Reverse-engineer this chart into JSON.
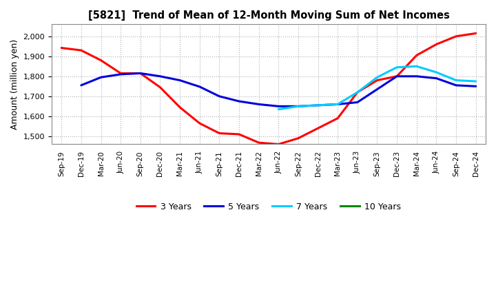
{
  "title": "[5821]  Trend of Mean of 12-Month Moving Sum of Net Incomes",
  "ylabel": "Amount (million yen)",
  "background_color": "#ffffff",
  "grid_color": "#b0b0b0",
  "ylim": [
    1460,
    2060
  ],
  "yticks": [
    1500,
    1600,
    1700,
    1800,
    1900,
    2000
  ],
  "x_labels": [
    "Sep-19",
    "Dec-19",
    "Mar-20",
    "Jun-20",
    "Sep-20",
    "Dec-20",
    "Mar-21",
    "Jun-21",
    "Sep-21",
    "Dec-21",
    "Mar-22",
    "Jun-22",
    "Sep-22",
    "Dec-22",
    "Mar-23",
    "Jun-23",
    "Sep-23",
    "Dec-23",
    "Mar-24",
    "Jun-24",
    "Sep-24",
    "Dec-24"
  ],
  "series": {
    "3 Years": {
      "color": "#ff0000",
      "x": [
        0,
        1,
        2,
        3,
        4,
        5,
        6,
        7,
        8,
        9,
        10,
        11,
        12,
        13,
        14,
        15,
        16,
        17,
        18,
        19,
        20,
        21
      ],
      "y": [
        1942,
        1930,
        1880,
        1815,
        1815,
        1745,
        1645,
        1565,
        1515,
        1510,
        1468,
        1460,
        1490,
        1540,
        1590,
        1720,
        1780,
        1800,
        1905,
        1960,
        2000,
        2015
      ]
    },
    "5 Years": {
      "color": "#0000dd",
      "x": [
        1,
        2,
        3,
        4,
        5,
        6,
        7,
        8,
        9,
        10,
        11,
        12,
        13,
        14,
        15,
        16,
        17,
        18,
        19,
        20,
        21
      ],
      "y": [
        1755,
        1795,
        1810,
        1815,
        1800,
        1780,
        1748,
        1700,
        1675,
        1660,
        1650,
        1650,
        1655,
        1660,
        1670,
        1735,
        1800,
        1800,
        1790,
        1755,
        1750
      ]
    },
    "7 Years": {
      "color": "#00ccff",
      "x": [
        11,
        12,
        13,
        14,
        15,
        16,
        17,
        18,
        19,
        20,
        21
      ],
      "y": [
        1635,
        1650,
        1655,
        1660,
        1720,
        1795,
        1845,
        1850,
        1820,
        1780,
        1775
      ]
    },
    "10 Years": {
      "color": "#008800",
      "x": [],
      "y": []
    }
  },
  "legend_labels": [
    "3 Years",
    "5 Years",
    "7 Years",
    "10 Years"
  ],
  "legend_colors": [
    "#ff0000",
    "#0000dd",
    "#00ccff",
    "#008800"
  ],
  "linewidth": 2.2
}
